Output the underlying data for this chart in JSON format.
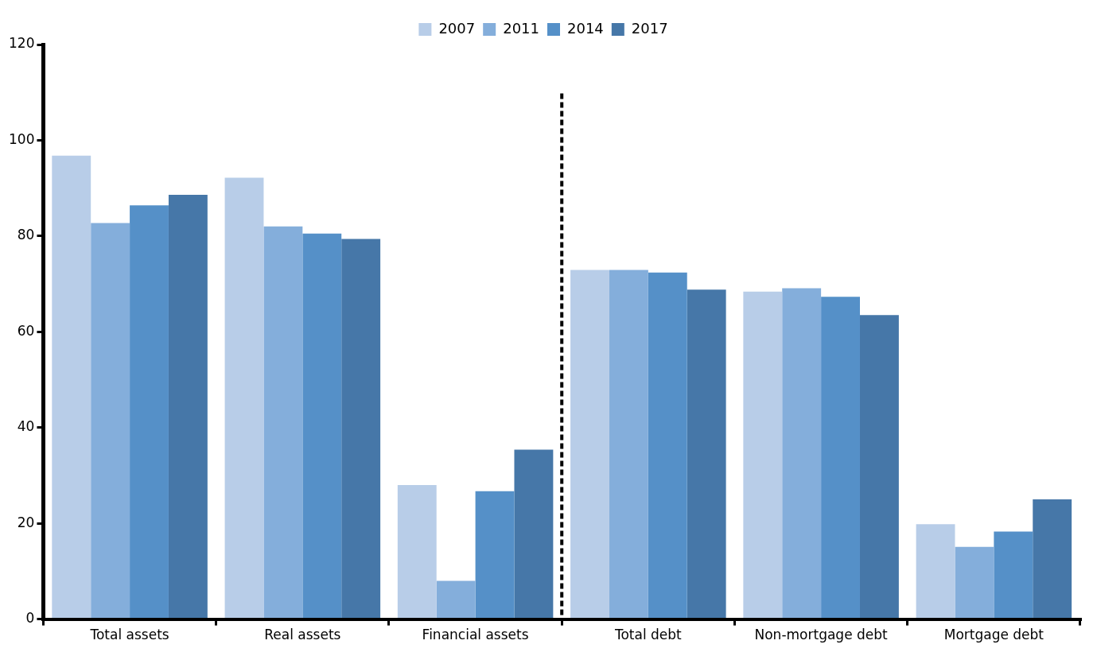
{
  "chart_data": {
    "type": "bar",
    "categories": [
      "Total assets",
      "Real assets",
      "Financial assets",
      "Total debt",
      "Non-mortgage debt",
      "Mortgage debt"
    ],
    "series": [
      {
        "name": "2007",
        "color": "#b8cde8",
        "values": [
          96.8,
          92.2,
          28.0,
          72.9,
          68.4,
          19.8
        ]
      },
      {
        "name": "2011",
        "color": "#84aedb",
        "values": [
          82.7,
          82.0,
          8.0,
          72.9,
          69.1,
          15.1
        ]
      },
      {
        "name": "2014",
        "color": "#5590c8",
        "values": [
          86.4,
          80.5,
          26.7,
          72.4,
          67.3,
          18.3
        ]
      },
      {
        "name": "2017",
        "color": "#4677a8",
        "values": [
          88.6,
          79.4,
          35.4,
          68.8,
          63.5,
          25.0
        ]
      }
    ],
    "ylim": [
      0,
      120
    ],
    "yticks": [
      0,
      20,
      40,
      60,
      80,
      100,
      120
    ],
    "grid": false,
    "legend": "top"
  }
}
